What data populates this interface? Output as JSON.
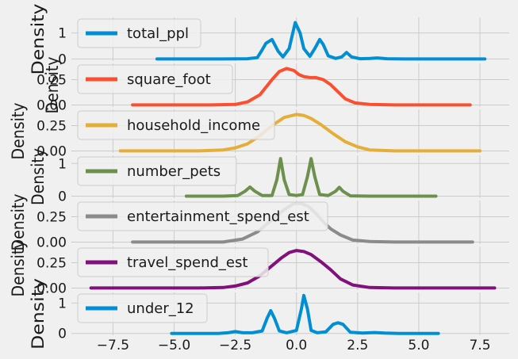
{
  "chart_data": [
    {
      "type": "line",
      "series": [
        {
          "name": "total_ppl",
          "color": "#008fd5",
          "x": [
            -5.7,
            -3.0,
            -2.0,
            -1.6,
            -1.4,
            -1.25,
            -1.0,
            -0.75,
            -0.55,
            -0.3,
            -0.15,
            -0.05,
            0.15,
            0.3,
            0.55,
            0.75,
            0.95,
            1.1,
            1.3,
            1.6,
            1.85,
            2.05,
            2.25,
            2.6,
            3.0,
            3.3,
            3.7,
            4.5,
            7.7
          ],
          "y": [
            0,
            0,
            0.01,
            0.05,
            0.35,
            0.6,
            0.75,
            0.3,
            0.08,
            0.4,
            1.0,
            1.4,
            1.0,
            0.4,
            0.1,
            0.4,
            0.75,
            0.55,
            0.12,
            0.02,
            0.08,
            0.25,
            0.08,
            0.01,
            0.02,
            0.04,
            0.01,
            0,
            0
          ]
        }
      ],
      "ylabel": "Density",
      "yticks": [
        0,
        1
      ],
      "ylim": [
        -0.08,
        1.6
      ],
      "xlim": [
        -9.2,
        8.7
      ],
      "legend": "upper left"
    },
    {
      "type": "line",
      "series": [
        {
          "name": "square_foot",
          "color": "#fc4f30",
          "x": [
            -6.7,
            -3.5,
            -2.5,
            -2.0,
            -1.5,
            -1.0,
            -0.7,
            -0.4,
            -0.1,
            0.1,
            0.3,
            0.55,
            0.8,
            1.1,
            1.4,
            1.7,
            2.0,
            2.4,
            3.0,
            4.0,
            7.1
          ],
          "y": [
            0,
            0,
            0.005,
            0.03,
            0.1,
            0.25,
            0.33,
            0.36,
            0.34,
            0.3,
            0.28,
            0.27,
            0.27,
            0.25,
            0.2,
            0.13,
            0.06,
            0.02,
            0.005,
            0,
            0
          ]
        }
      ],
      "ylabel": "Density",
      "yticks": [
        "0.00",
        "0.25"
      ],
      "ylim": [
        -0.02,
        0.41
      ],
      "xlim": [
        -9.2,
        8.7
      ],
      "legend": "upper left"
    },
    {
      "type": "line",
      "series": [
        {
          "name": "household_income",
          "color": "#e5ae38",
          "x": [
            -7.2,
            -4.0,
            -3.0,
            -2.5,
            -2.0,
            -1.5,
            -1.0,
            -0.5,
            0,
            0.3,
            0.6,
            1.0,
            1.5,
            2.0,
            2.5,
            3.0,
            4.0,
            7.5
          ],
          "y": [
            0,
            0,
            0.01,
            0.03,
            0.07,
            0.15,
            0.25,
            0.33,
            0.36,
            0.35,
            0.32,
            0.26,
            0.17,
            0.09,
            0.04,
            0.01,
            0,
            0
          ]
        }
      ],
      "ylabel": "Density",
      "yticks": [
        "0.00",
        "0.25"
      ],
      "ylim": [
        -0.02,
        0.41
      ],
      "xlim": [
        -9.2,
        8.7
      ],
      "legend": "upper left"
    },
    {
      "type": "line",
      "series": [
        {
          "name": "number_pets",
          "color": "#6d904f",
          "x": [
            -4.5,
            -3.0,
            -2.4,
            -2.1,
            -1.9,
            -1.7,
            -1.4,
            -1.0,
            -0.8,
            -0.65,
            -0.5,
            -0.3,
            0.0,
            0.25,
            0.45,
            0.6,
            0.75,
            0.95,
            1.3,
            1.6,
            1.75,
            1.9,
            2.2,
            3.0,
            5.7
          ],
          "y": [
            0,
            0,
            0.02,
            0.15,
            0.28,
            0.15,
            0.02,
            0.02,
            0.5,
            1.15,
            0.5,
            0.05,
            0.02,
            0.05,
            0.6,
            1.15,
            0.6,
            0.05,
            0.02,
            0.15,
            0.27,
            0.15,
            0.01,
            0,
            0
          ]
        }
      ],
      "ylabel": "Density",
      "yticks": [
        0,
        1
      ],
      "ylim": [
        -0.06,
        1.25
      ],
      "xlim": [
        -9.2,
        8.7
      ],
      "legend": "upper left"
    },
    {
      "type": "line",
      "series": [
        {
          "name": "entertainment_spend_est",
          "color": "#8b8b8b",
          "x": [
            -6.7,
            -3.0,
            -2.2,
            -1.6,
            -1.0,
            -0.5,
            -0.1,
            0.2,
            0.5,
            0.8,
            1.1,
            1.4,
            1.8,
            2.3,
            3.0,
            4.0,
            7.2
          ],
          "y": [
            0,
            0,
            0.03,
            0.1,
            0.22,
            0.32,
            0.38,
            0.38,
            0.35,
            0.28,
            0.2,
            0.13,
            0.07,
            0.02,
            0.005,
            0,
            0
          ]
        }
      ],
      "ylabel": "Density",
      "yticks": [
        "0.00",
        "0.25"
      ],
      "ylim": [
        -0.02,
        0.41
      ],
      "xlim": [
        -9.2,
        8.7
      ],
      "legend": "upper left"
    },
    {
      "type": "line",
      "series": [
        {
          "name": "travel_spend_est",
          "color": "#810f7c",
          "x": [
            -8.4,
            -4.0,
            -3.0,
            -2.5,
            -2.0,
            -1.5,
            -1.0,
            -0.6,
            -0.3,
            0.0,
            0.3,
            0.6,
            1.0,
            1.4,
            1.8,
            2.3,
            3.0,
            4.0,
            8.1
          ],
          "y": [
            0,
            0,
            0.005,
            0.02,
            0.05,
            0.12,
            0.22,
            0.3,
            0.35,
            0.37,
            0.36,
            0.33,
            0.26,
            0.18,
            0.09,
            0.03,
            0.005,
            0,
            0
          ]
        }
      ],
      "ylabel": "Density",
      "yticks": [
        "0.00",
        "0.25"
      ],
      "ylim": [
        -0.02,
        0.41
      ],
      "xlim": [
        -9.2,
        8.7
      ],
      "legend": "upper left"
    },
    {
      "type": "line",
      "series": [
        {
          "name": "under_12",
          "color": "#008fd5",
          "x": [
            -5.1,
            -3.2,
            -2.8,
            -2.5,
            -2.2,
            -1.8,
            -1.4,
            -1.2,
            -1.05,
            -0.9,
            -0.7,
            -0.4,
            0.0,
            0.2,
            0.3,
            0.45,
            0.6,
            0.85,
            1.2,
            1.5,
            1.7,
            1.9,
            2.2,
            2.7,
            3.2,
            3.6,
            4.2,
            5.8
          ],
          "y": [
            0,
            0,
            0.02,
            0.06,
            0.02,
            0.02,
            0.08,
            0.5,
            0.75,
            0.5,
            0.08,
            0.02,
            0.1,
            0.8,
            1.25,
            0.8,
            0.1,
            0.02,
            0.05,
            0.3,
            0.35,
            0.3,
            0.04,
            0.01,
            0.03,
            0.01,
            0,
            0
          ]
        }
      ],
      "ylabel": "Density",
      "yticks": [
        0,
        1
      ],
      "ylim": [
        -0.06,
        1.35
      ],
      "xlim": [
        -9.2,
        8.7
      ],
      "legend": "upper left"
    }
  ],
  "xaxis": {
    "ticks": [
      -7.5,
      -5.0,
      -2.5,
      0.0,
      2.5,
      5.0,
      7.5
    ],
    "tick_labels": [
      "−7.5",
      "−5.0",
      "−2.5",
      "0.0",
      "2.5",
      "5.0",
      "7.5"
    ]
  },
  "style": {
    "background": "#f0f0f0",
    "grid_color": "#cbcbcb"
  }
}
